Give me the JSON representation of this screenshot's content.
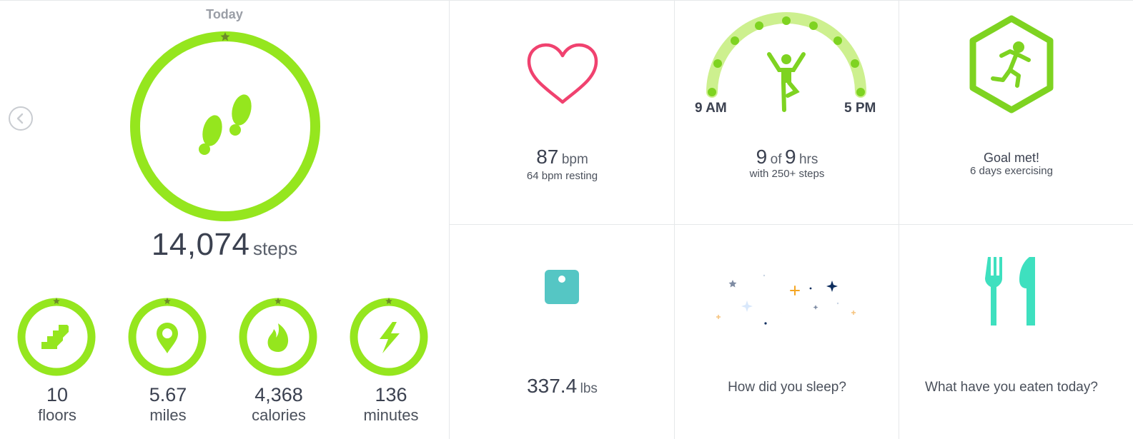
{
  "colors": {
    "accent_green": "#95e61e",
    "heart_pink": "#f0426f",
    "scale_teal": "#55c6c4",
    "food_teal": "#3ee0bf",
    "moon_navy": "#0d2d5e",
    "text_dark": "#3b4150",
    "text_muted": "#9a9ea6"
  },
  "day": {
    "label": "Today"
  },
  "nav": {
    "prev_icon": "chevron-left-icon"
  },
  "steps": {
    "value": "14,074",
    "unit": "steps",
    "goal_progress": 1.0,
    "icon": "footprints-icon"
  },
  "stats": [
    {
      "value": "10",
      "label": "floors",
      "icon": "stairs-icon",
      "goal_progress": 1.0
    },
    {
      "value": "5.67",
      "label": "miles",
      "icon": "location-pin-icon",
      "goal_progress": 1.0
    },
    {
      "value": "4,368",
      "label": "calories",
      "icon": "flame-icon",
      "goal_progress": 1.0
    },
    {
      "value": "136",
      "label": "minutes",
      "icon": "lightning-icon",
      "goal_progress": 1.0
    }
  ],
  "heart": {
    "value": "87",
    "unit": "bpm",
    "sub": "64 bpm resting",
    "icon": "heart-icon"
  },
  "hourly": {
    "value": "9",
    "of": "of",
    "total": "9",
    "unit": "hrs",
    "sub": "with 250+ steps",
    "start": "9 AM",
    "end": "5 PM",
    "hours_met": 9,
    "hours_total": 9,
    "icon": "active-person-icon"
  },
  "exercise": {
    "title": "Goal met!",
    "sub": "6 days exercising",
    "icon": "running-hexagon-icon"
  },
  "weight": {
    "value": "337.4",
    "unit": "lbs",
    "icon": "scale-icon"
  },
  "sleep": {
    "prompt": "How did you sleep?",
    "icon": "moon-stars-icon"
  },
  "food": {
    "prompt": "What have you eaten today?",
    "icon": "fork-knife-icon"
  }
}
